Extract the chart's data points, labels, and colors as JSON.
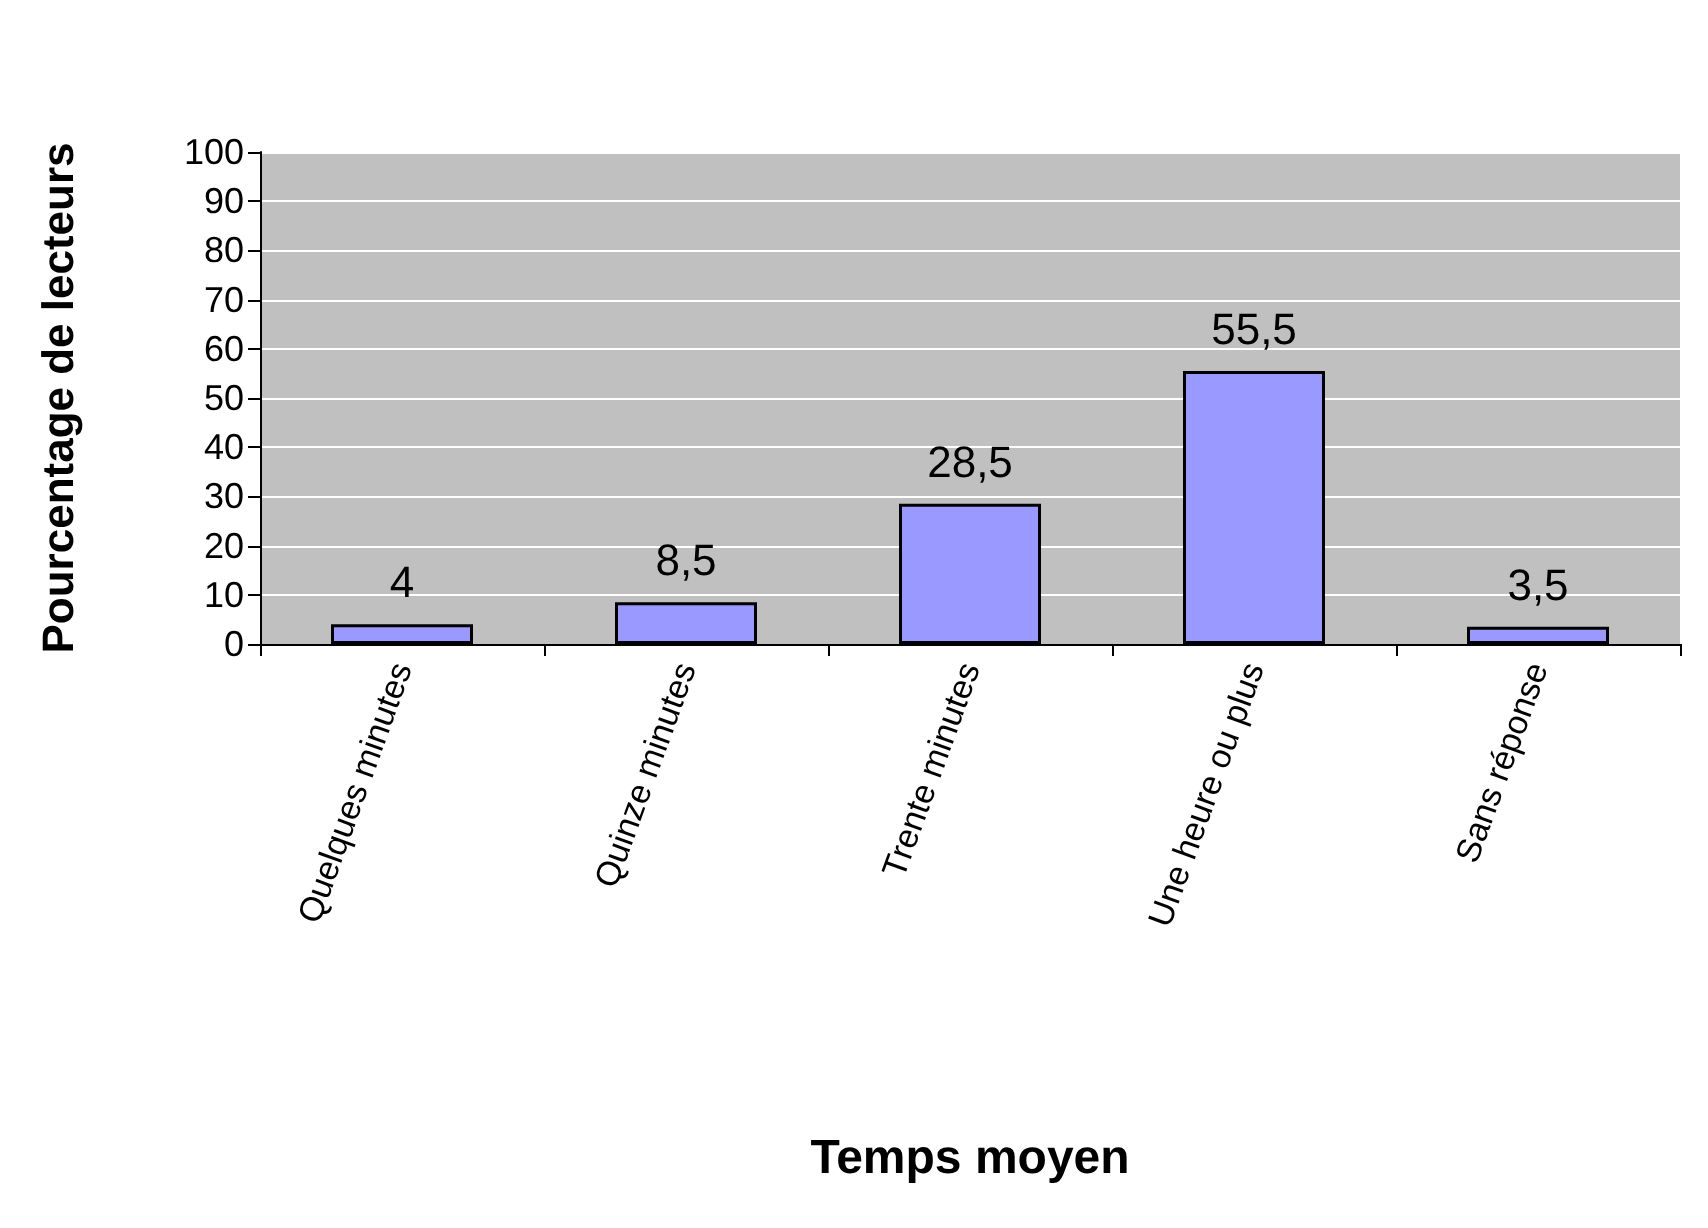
{
  "chart_data": {
    "type": "bar",
    "xlabel": "Temps moyen",
    "ylabel": "Pourcentage de lecteurs",
    "categories": [
      "Quelques minutes",
      "Quinze minutes",
      "Trente minutes",
      "Une heure ou plus",
      "Sans réponse"
    ],
    "values": [
      4,
      8.5,
      28.5,
      55.5,
      3.5
    ],
    "value_labels": [
      "4",
      "8,5",
      "28,5",
      "55,5",
      "3,5"
    ],
    "color": "#9999ff",
    "ylim": [
      0,
      100
    ],
    "yticks": [
      0,
      10,
      20,
      30,
      40,
      50,
      60,
      70,
      80,
      90,
      100
    ],
    "grid": "y"
  }
}
